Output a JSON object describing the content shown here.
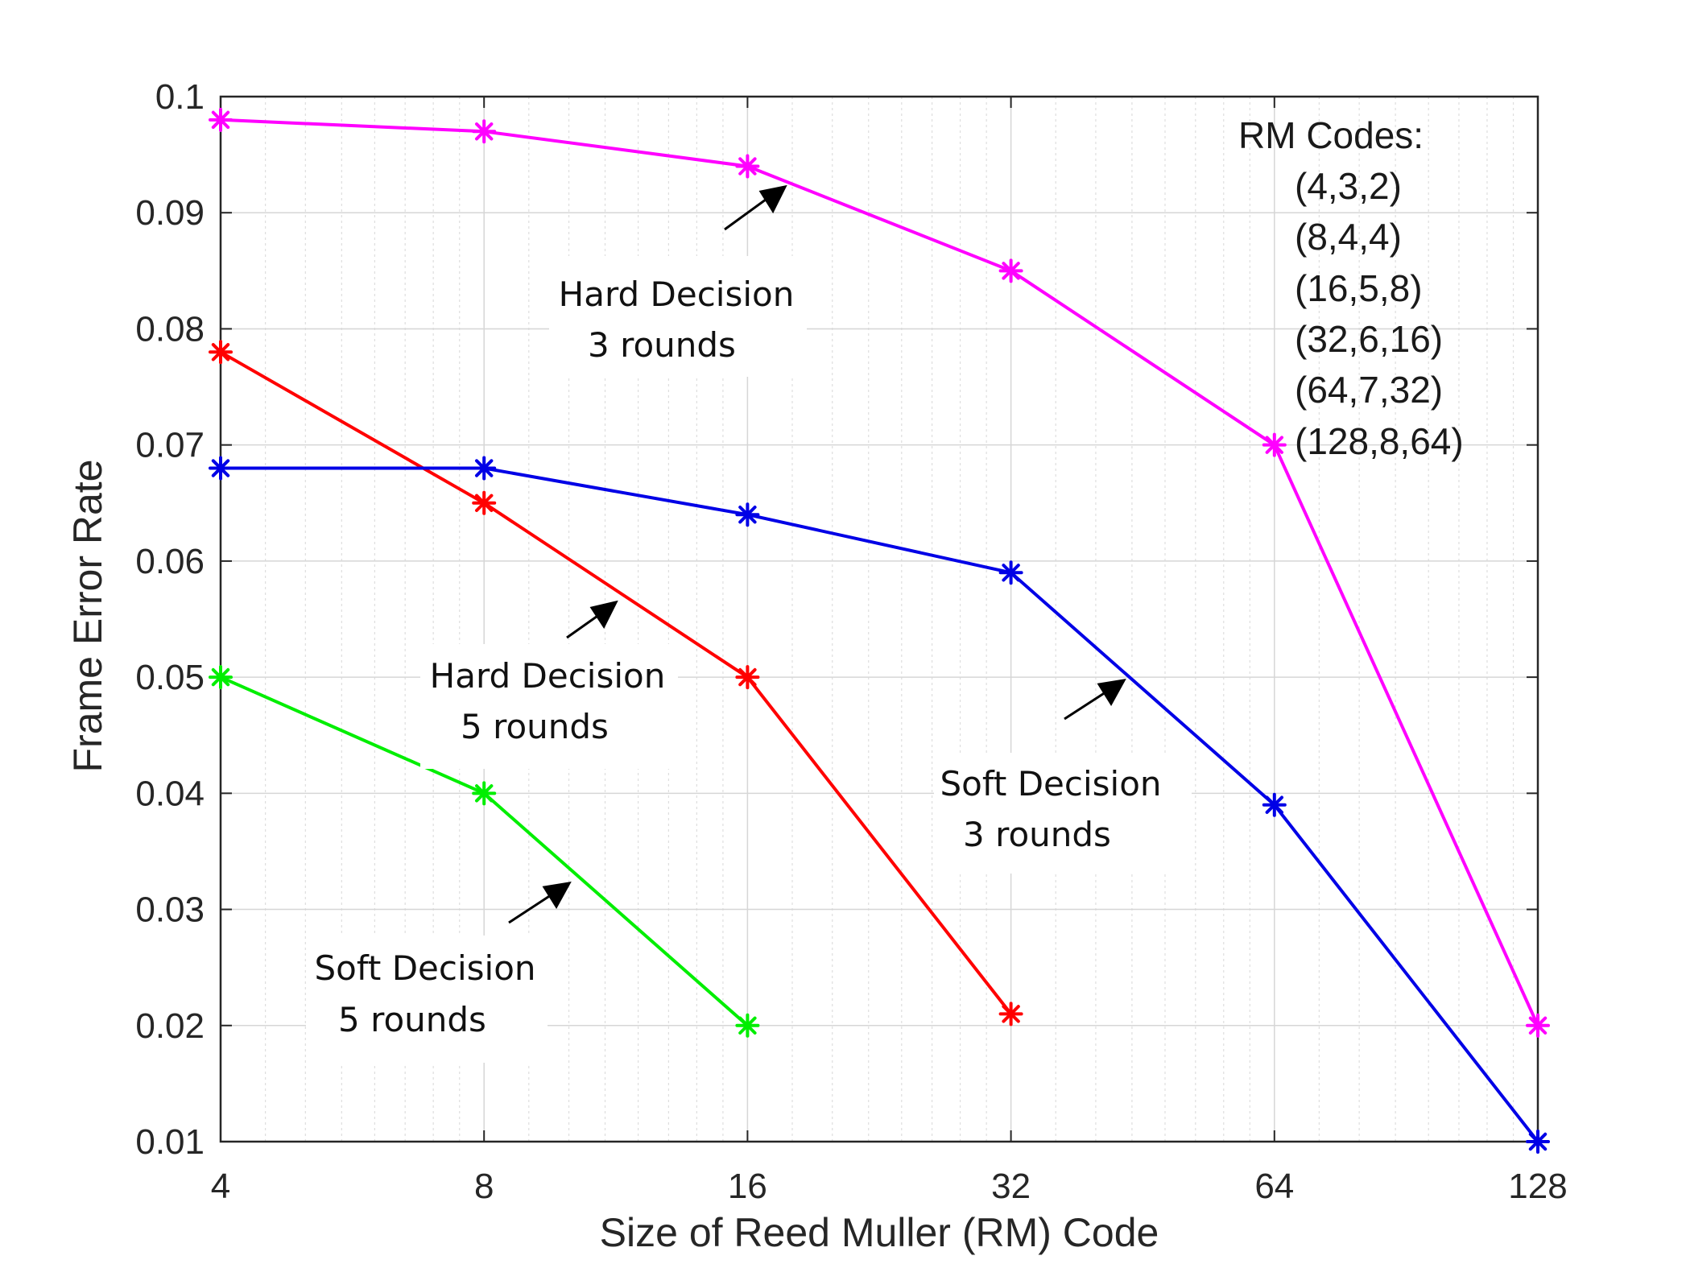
{
  "chart_data": {
    "type": "line",
    "title": "",
    "xlabel": "Size of Reed Muller (RM) Code",
    "ylabel": "Frame Error Rate",
    "x_scale": "log2",
    "x": [
      4,
      8,
      16,
      32,
      64,
      128
    ],
    "x_tick_labels": [
      "4",
      "8",
      "16",
      "32",
      "64",
      "128"
    ],
    "ylim": [
      0.01,
      0.1
    ],
    "y_ticks": [
      0.01,
      0.02,
      0.03,
      0.04,
      0.05,
      0.06,
      0.07,
      0.08,
      0.09,
      0.1
    ],
    "y_tick_labels": [
      "0.01",
      "0.02",
      "0.03",
      "0.04",
      "0.05",
      "0.06",
      "0.07",
      "0.08",
      "0.09",
      "0.1"
    ],
    "grid": true,
    "series": [
      {
        "name": "Hard Decision 3 rounds",
        "color": "#ff00ff",
        "x": [
          4,
          8,
          16,
          32,
          64,
          128
        ],
        "values": [
          0.098,
          0.097,
          0.094,
          0.085,
          0.07,
          0.02
        ]
      },
      {
        "name": "Hard Decision 5 rounds",
        "color": "#ff0000",
        "x": [
          4,
          8,
          16,
          32
        ],
        "values": [
          0.078,
          0.065,
          0.05,
          0.021
        ]
      },
      {
        "name": "Soft Decision 3 rounds",
        "color": "#0000e6",
        "x": [
          4,
          8,
          16,
          32,
          64,
          128
        ],
        "values": [
          0.068,
          0.068,
          0.064,
          0.059,
          0.039,
          0.01
        ]
      },
      {
        "name": "Soft Decision 5 rounds",
        "color": "#00ee00",
        "x": [
          4,
          8,
          16
        ],
        "values": [
          0.05,
          0.04,
          0.02
        ]
      }
    ],
    "annotations": [
      {
        "line1": "Hard Decision",
        "line2": "3 rounds"
      },
      {
        "line1": "Hard Decision",
        "line2": "5 rounds"
      },
      {
        "line1": "Soft Decision",
        "line2": "3 rounds"
      },
      {
        "line1": "Soft Decision",
        "line2": "5 rounds"
      }
    ],
    "legend": {
      "title": "RM Codes:",
      "items": [
        "(4,3,2)",
        "(8,4,4)",
        "(16,5,8)",
        "(32,6,16)",
        "(64,7,32)",
        "(128,8,64)"
      ],
      "placement": "top-right"
    }
  }
}
